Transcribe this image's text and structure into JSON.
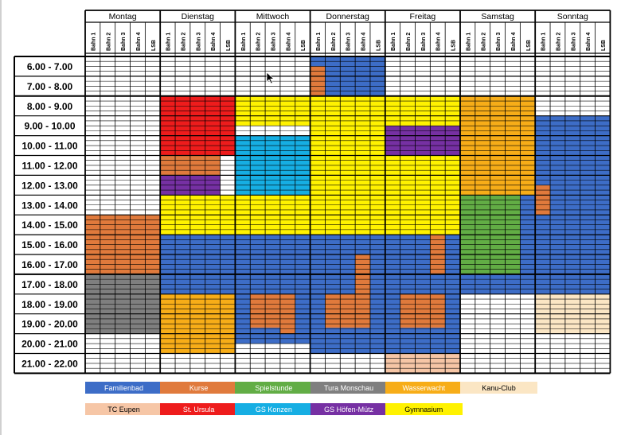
{
  "days": [
    "Montag",
    "Dienstag",
    "Mittwoch",
    "Donnerstag",
    "Freitag",
    "Samstag",
    "Sonntag"
  ],
  "lanes": [
    "Bahn 1",
    "Bahn 2",
    "Bahn 3",
    "Bahn 4",
    "LSB"
  ],
  "times": [
    "6.00 - 7.00",
    "7.00 - 8.00",
    "8.00 - 9.00",
    "9.00 - 10.00",
    "10.00 - 11.00",
    "11.00 - 12.00",
    "12.00 - 13.00",
    "13.00 - 14.00",
    "14.00 - 15.00",
    "15.00 - 16.00",
    "16.00 - 17.00",
    "17.00 - 18.00",
    "18.00 - 19.00",
    "19.00 - 20.00",
    "20.00 - 21.00",
    "21.00 - 22.00"
  ],
  "legend": [
    {
      "key": "familienbad",
      "label": "Familienbad",
      "color": "#3d6dc7",
      "text": "#ffffff"
    },
    {
      "key": "kurse",
      "label": "Kurse",
      "color": "#e07a3c",
      "text": "#ffffff"
    },
    {
      "key": "spielstunde",
      "label": "Spielstunde",
      "color": "#62ad45",
      "text": "#ffffff"
    },
    {
      "key": "tura",
      "label": "Tura Monschau",
      "color": "#7f7f7f",
      "text": "#ffffff"
    },
    {
      "key": "wasserwacht",
      "label": "Wasserwacht",
      "color": "#f7ad18",
      "text": "#ffffff"
    },
    {
      "key": "kanu",
      "label": "Kanu-Club",
      "color": "#fbe6c4",
      "text": "#000000"
    },
    {
      "key": "tceupen",
      "label": "TC Eupen",
      "color": "#f6c6a6",
      "text": "#000000"
    },
    {
      "key": "ursula",
      "label": "St. Ursula",
      "color": "#ee1c1c",
      "text": "#ffffff"
    },
    {
      "key": "gskonzen",
      "label": "GS Konzen",
      "color": "#16aee3",
      "text": "#ffffff"
    },
    {
      "key": "gshoefen",
      "label": "GS Höfen-Mütz",
      "color": "#7630a3",
      "text": "#ffffff"
    },
    {
      "key": "gymnasium",
      "label": "Gymnasium",
      "color": "#fff200",
      "text": "#000000"
    }
  ],
  "blocks": [
    {
      "day": 0,
      "lanes": [
        0,
        4
      ],
      "slots": [
        8,
        11
      ],
      "group": "kurse"
    },
    {
      "day": 0,
      "lanes": [
        0,
        4
      ],
      "slots": [
        11,
        14
      ],
      "group": "tura"
    },
    {
      "day": 1,
      "lanes": [
        0,
        4
      ],
      "slots": [
        2,
        5
      ],
      "group": "ursula"
    },
    {
      "day": 1,
      "lanes": [
        0,
        3
      ],
      "slots": [
        5,
        6
      ],
      "group": "kurse"
    },
    {
      "day": 1,
      "lanes": [
        0,
        3
      ],
      "slots": [
        6,
        7
      ],
      "group": "gshoefen"
    },
    {
      "day": 1,
      "lanes": [
        0,
        4
      ],
      "slots": [
        7,
        9
      ],
      "group": "gymnasium"
    },
    {
      "day": 1,
      "lanes": [
        0,
        4
      ],
      "slots": [
        9,
        12
      ],
      "group": "familienbad"
    },
    {
      "day": 1,
      "lanes": [
        0,
        4
      ],
      "slots": [
        12,
        15
      ],
      "group": "wasserwacht"
    },
    {
      "day": 2,
      "lanes": [
        0,
        4
      ],
      "slots": [
        2,
        3.5
      ],
      "group": "gymnasium"
    },
    {
      "day": 2,
      "lanes": [
        0,
        4
      ],
      "slots": [
        4,
        7
      ],
      "group": "gskonzen"
    },
    {
      "day": 2,
      "lanes": [
        0,
        4
      ],
      "slots": [
        7,
        9
      ],
      "group": "gymnasium"
    },
    {
      "day": 2,
      "lanes": [
        0,
        4
      ],
      "slots": [
        9,
        14.5
      ],
      "group": "familienbad"
    },
    {
      "day": 2,
      "lanes": [
        1,
        3
      ],
      "slots": [
        12,
        13
      ],
      "group": "kurse"
    },
    {
      "day": 2,
      "lanes": [
        1,
        2
      ],
      "slots": [
        13,
        13.7
      ],
      "group": "kurse"
    },
    {
      "day": 2,
      "lanes": [
        3,
        3
      ],
      "slots": [
        13,
        14
      ],
      "group": "kurse"
    },
    {
      "day": 3,
      "lanes": [
        0,
        4
      ],
      "slots": [
        0,
        2
      ],
      "group": "familienbad"
    },
    {
      "day": 3,
      "lanes": [
        0,
        0
      ],
      "slots": [
        0.5,
        2
      ],
      "group": "kurse"
    },
    {
      "day": 3,
      "lanes": [
        0,
        4
      ],
      "slots": [
        2,
        9
      ],
      "group": "gymnasium"
    },
    {
      "day": 3,
      "lanes": [
        0,
        4
      ],
      "slots": [
        9,
        15
      ],
      "group": "familienbad"
    },
    {
      "day": 3,
      "lanes": [
        3,
        3
      ],
      "slots": [
        10,
        12
      ],
      "group": "kurse"
    },
    {
      "day": 3,
      "lanes": [
        1,
        3
      ],
      "slots": [
        12,
        13.7
      ],
      "group": "kurse"
    },
    {
      "day": 4,
      "lanes": [
        0,
        4
      ],
      "slots": [
        2,
        3.5
      ],
      "group": "gymnasium"
    },
    {
      "day": 4,
      "lanes": [
        0,
        4
      ],
      "slots": [
        3.5,
        5
      ],
      "group": "gshoefen"
    },
    {
      "day": 4,
      "lanes": [
        0,
        4
      ],
      "slots": [
        5,
        9
      ],
      "group": "gymnasium"
    },
    {
      "day": 4,
      "lanes": [
        0,
        4
      ],
      "slots": [
        9,
        15
      ],
      "group": "familienbad"
    },
    {
      "day": 4,
      "lanes": [
        3,
        3
      ],
      "slots": [
        9,
        11
      ],
      "group": "kurse"
    },
    {
      "day": 4,
      "lanes": [
        1,
        3
      ],
      "slots": [
        12,
        13.7
      ],
      "group": "kurse"
    },
    {
      "day": 4,
      "lanes": [
        0,
        4
      ],
      "slots": [
        15,
        16
      ],
      "group": "tceupen"
    },
    {
      "day": 5,
      "lanes": [
        0,
        4
      ],
      "slots": [
        2,
        7
      ],
      "group": "wasserwacht"
    },
    {
      "day": 5,
      "lanes": [
        0,
        4
      ],
      "slots": [
        7,
        12
      ],
      "group": "familienbad"
    },
    {
      "day": 5,
      "lanes": [
        0,
        3
      ],
      "slots": [
        7,
        11
      ],
      "group": "spielstunde"
    },
    {
      "day": 6,
      "lanes": [
        0,
        4
      ],
      "slots": [
        3,
        12
      ],
      "group": "familienbad"
    },
    {
      "day": 6,
      "lanes": [
        0,
        0
      ],
      "slots": [
        6.5,
        8
      ],
      "group": "kurse"
    },
    {
      "day": 6,
      "lanes": [
        0,
        4
      ],
      "slots": [
        12,
        14
      ],
      "group": "kanu"
    }
  ],
  "cursor_icon": "mouse-pointer-icon"
}
